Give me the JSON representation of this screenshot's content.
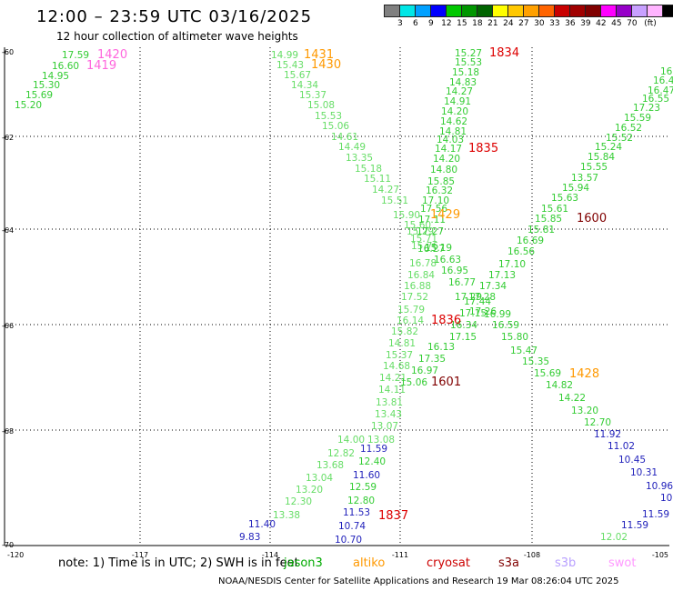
{
  "header": {
    "title": "12:00 – 23:59 UTC 03/16/2025",
    "subtitle": "12 hour collection of altimeter wave heights"
  },
  "legend": {
    "unit": "(ft)",
    "colors": [
      "#808080",
      "#00e6e6",
      "#00a0ff",
      "#0000ff",
      "#00c800",
      "#009600",
      "#006400",
      "#ffff00",
      "#ffc800",
      "#ffa000",
      "#ff6400",
      "#c80000",
      "#a00000",
      "#800000",
      "#ff00ff",
      "#9600c8",
      "#c8a0ff",
      "#ffb4ff",
      "#000000"
    ],
    "labels": [
      "3",
      "6",
      "9",
      "12",
      "15",
      "18",
      "21",
      "24",
      "27",
      "30",
      "33",
      "36",
      "39",
      "42",
      "45",
      "70"
    ]
  },
  "axes": {
    "lat_labels": [
      "-60",
      "-62",
      "-64",
      "-66",
      "-68",
      "-70"
    ],
    "lon_labels": [
      "-120",
      "-117",
      "-114",
      "-111",
      "-108",
      "-105"
    ]
  },
  "note_text": "note:  1) Time is in UTC;  2) SWH is in feet",
  "satellites": [
    {
      "name": "jason3",
      "color": "#00aa00"
    },
    {
      "name": "altiko",
      "color": "#ff9900"
    },
    {
      "name": "cryosat",
      "color": "#cc0000"
    },
    {
      "name": "s3a",
      "color": "#800000"
    },
    {
      "name": "s3b",
      "color": "#b8a0ff"
    },
    {
      "name": "swot",
      "color": "#ff99ff"
    }
  ],
  "footer": "NOAA/NESDIS Center for Satellite Applications and Research    19 Mar 08:26:04 UTC 2025",
  "map_data": {
    "tracks": [
      {
        "color": "#33cc33",
        "values": [
          "17.59",
          "16.60",
          "14.95",
          "15.30",
          "15.69",
          "15.20"
        ]
      },
      {
        "color": "#66dd66",
        "values": [
          "14.99",
          "15.43",
          "15.67",
          "14.34",
          "15.37",
          "15.08",
          "15.53",
          "15.06",
          "14.61",
          "14.49",
          "13.35",
          "15.18",
          "15.11",
          "14.27",
          "15.51",
          "15.90",
          "15.60",
          "15.29",
          "15.71",
          "15.76",
          "16.78",
          "16.84",
          "16.88",
          "17.52",
          "15.79",
          "16.14",
          "15.82",
          "14.81",
          "15.37",
          "14.68",
          "14.21",
          "14.11",
          "13.81",
          "13.43",
          "13.07",
          "13.08",
          "14.00",
          "12.82",
          "13.68",
          "13.04",
          "13.20",
          "12.30",
          "13.38"
        ]
      },
      {
        "color": "#33cc33",
        "values": [
          "15.27",
          "15.53",
          "15.18",
          "14.83",
          "14.27",
          "14.91",
          "14.20",
          "14.62",
          "14.81",
          "14.03",
          "14.17",
          "14.20",
          "14.80",
          "15.85",
          "16.32",
          "17.10",
          "17.56",
          "17.11",
          "17.27",
          "16.27",
          "15.19",
          "16.63",
          "16.95",
          "16.77",
          "17.29",
          "17.44",
          "17.26",
          "17.15",
          "16.34",
          "17.15",
          "16.13",
          "17.35",
          "16.97",
          "15.06"
        ]
      },
      {
        "color": "#33cc33",
        "values": [
          "16.1",
          "16.41",
          "16.47",
          "16.55",
          "17.23",
          "15.59",
          "16.52",
          "15.52",
          "15.24",
          "15.84",
          "15.55",
          "13.57",
          "15.94",
          "15.63",
          "15.61",
          "15.85",
          "15.81",
          "16.69",
          "16.56",
          "17.10",
          "17.13",
          "17.34",
          "17.28",
          "16.99",
          "16.59",
          "15.80",
          "15.47",
          "15.35",
          "15.69",
          "14.82",
          "14.22",
          "13.20",
          "12.70"
        ]
      },
      {
        "color": "#33cc33",
        "values": [
          "12.40",
          "12.59",
          "12.80"
        ]
      },
      {
        "color": "#2222bb",
        "values": [
          "11.59",
          "11.60",
          "11.53",
          "10.74",
          "10.70",
          "11.40",
          "9.83"
        ]
      },
      {
        "color": "#2222bb",
        "values": [
          "11.92",
          "11.02",
          "10.45",
          "10.31",
          "10.96",
          "10.2",
          "11.59",
          "11.59"
        ]
      },
      {
        "color": "#66dd66",
        "values": [
          "12.02"
        ]
      }
    ],
    "time_labels": [
      {
        "text": "1420",
        "color": "#ff66dd"
      },
      {
        "text": "1419",
        "color": "#ff66dd"
      },
      {
        "text": "1431",
        "color": "#ff9900"
      },
      {
        "text": "1430",
        "color": "#ff9900"
      },
      {
        "text": "1834",
        "color": "#dd0000"
      },
      {
        "text": "1835",
        "color": "#dd0000"
      },
      {
        "text": "1429",
        "color": "#ff9900"
      },
      {
        "text": "1600",
        "color": "#800000"
      },
      {
        "text": "1836",
        "color": "#dd0000"
      },
      {
        "text": "1428",
        "color": "#ff9900"
      },
      {
        "text": "1601",
        "color": "#800000"
      },
      {
        "text": "1837",
        "color": "#dd0000"
      }
    ]
  }
}
